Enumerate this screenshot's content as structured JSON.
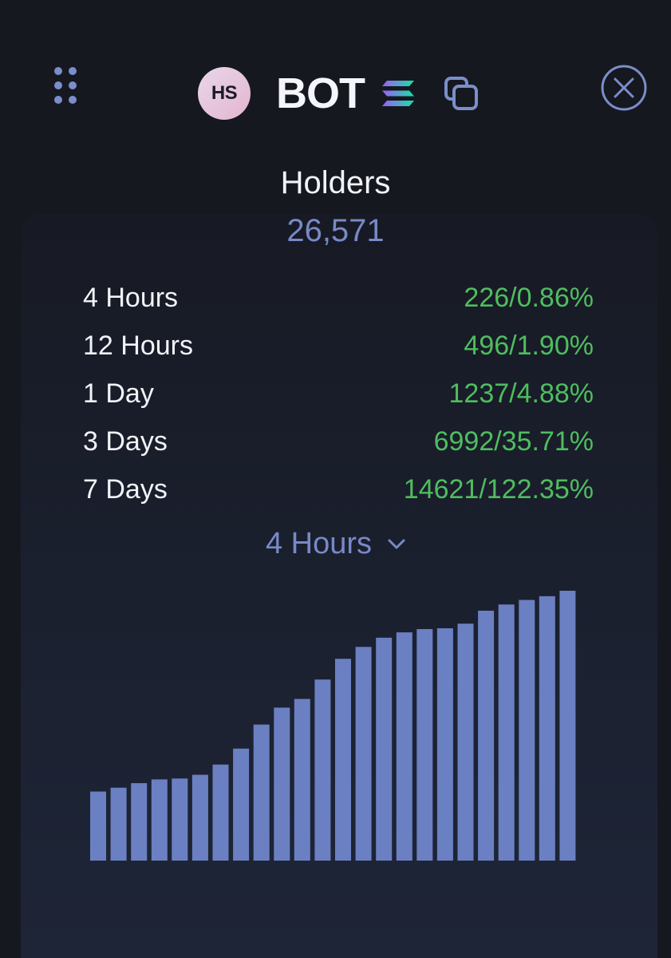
{
  "header": {
    "avatar_text": "HS",
    "token_name": "BOT",
    "icons": [
      "menu-grid-icon",
      "solana-icon",
      "copy-icon",
      "close-icon"
    ]
  },
  "holders": {
    "label": "Holders",
    "value": "26,571"
  },
  "stats": [
    {
      "label": "4 Hours",
      "value": "226/0.86%"
    },
    {
      "label": "12 Hours",
      "value": "496/1.90%"
    },
    {
      "label": "1 Day",
      "value": "1237/4.88%"
    },
    {
      "label": "3 Days",
      "value": "6992/35.71%"
    },
    {
      "label": "7 Days",
      "value": "14621/122.35%"
    }
  ],
  "period_selector": {
    "selected": "4 Hours"
  },
  "colors": {
    "background": "#161820",
    "accent": "#7889c7",
    "positive": "#4fbd5f",
    "bar": "#6b80c2"
  },
  "chart_data": {
    "type": "bar",
    "ylim": [
      0,
      100
    ],
    "values": [
      25.6,
      27.0,
      28.7,
      30.1,
      30.4,
      31.8,
      35.6,
      41.5,
      50.4,
      56.7,
      59.9,
      67.1,
      74.8,
      79.2,
      82.6,
      84.6,
      85.8,
      86.1,
      87.8,
      92.6,
      94.9,
      96.6,
      98.0,
      100
    ]
  }
}
